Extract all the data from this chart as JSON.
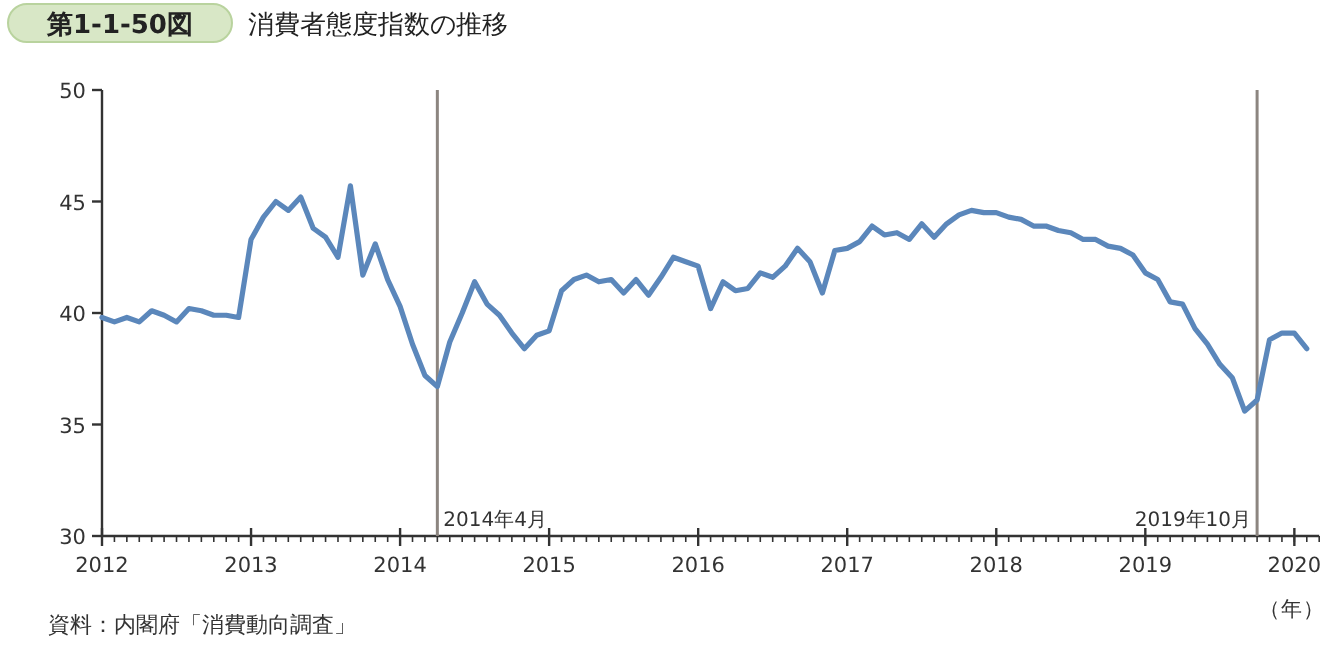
{
  "chart_data": {
    "type": "line",
    "title": "第1-1-50図",
    "subtitle": "消費者態度指数の推移",
    "xlabel": "（年）",
    "annotations": [
      "資料：内閣府「消費動向調査」"
    ],
    "x": [
      "2012-01",
      "2012-02",
      "2012-03",
      "2012-04",
      "2012-05",
      "2012-06",
      "2012-07",
      "2012-08",
      "2012-09",
      "2012-10",
      "2012-11",
      "2012-12",
      "2013-01",
      "2013-02",
      "2013-03",
      "2013-04",
      "2013-05",
      "2013-06",
      "2013-07",
      "2013-08",
      "2013-09",
      "2013-10",
      "2013-11",
      "2013-12",
      "2014-01",
      "2014-02",
      "2014-03",
      "2014-04",
      "2014-05",
      "2014-06",
      "2014-07",
      "2014-08",
      "2014-09",
      "2014-10",
      "2014-11",
      "2014-12",
      "2015-01",
      "2015-02",
      "2015-03",
      "2015-04",
      "2015-05",
      "2015-06",
      "2015-07",
      "2015-08",
      "2015-09",
      "2015-10",
      "2015-11",
      "2015-12",
      "2016-01",
      "2016-02",
      "2016-03",
      "2016-04",
      "2016-05",
      "2016-06",
      "2016-07",
      "2016-08",
      "2016-09",
      "2016-10",
      "2016-11",
      "2016-12",
      "2017-01",
      "2017-02",
      "2017-03",
      "2017-04",
      "2017-05",
      "2017-06",
      "2017-07",
      "2017-08",
      "2017-09",
      "2017-10",
      "2017-11",
      "2017-12",
      "2018-01",
      "2018-02",
      "2018-03",
      "2018-04",
      "2018-05",
      "2018-06",
      "2018-07",
      "2018-08",
      "2018-09",
      "2018-10",
      "2018-11",
      "2018-12",
      "2019-01",
      "2019-02",
      "2019-03",
      "2019-04",
      "2019-05",
      "2019-06",
      "2019-07",
      "2019-08",
      "2019-09",
      "2019-10",
      "2019-11",
      "2019-12",
      "2020-01",
      "2020-02"
    ],
    "series": [
      {
        "color": "#5b87bb",
        "values": [
          39.8,
          39.6,
          39.8,
          39.6,
          40.1,
          39.9,
          39.6,
          40.2,
          40.1,
          39.9,
          39.9,
          39.8,
          43.3,
          44.3,
          45.0,
          44.6,
          45.2,
          43.8,
          43.4,
          42.5,
          45.7,
          41.7,
          43.1,
          41.5,
          40.3,
          38.6,
          37.2,
          36.7,
          38.7,
          40.0,
          41.4,
          40.4,
          39.9,
          39.1,
          38.4,
          39.0,
          39.2,
          41.0,
          41.5,
          41.7,
          41.4,
          41.5,
          40.9,
          41.5,
          40.8,
          41.6,
          42.5,
          42.3,
          42.1,
          40.2,
          41.4,
          41.0,
          41.1,
          41.8,
          41.6,
          42.1,
          42.9,
          42.3,
          40.9,
          42.8,
          42.9,
          43.2,
          43.9,
          43.5,
          43.6,
          43.3,
          44.0,
          43.4,
          44.0,
          44.4,
          44.6,
          44.5,
          44.5,
          44.3,
          44.2,
          43.9,
          43.9,
          43.7,
          43.6,
          43.3,
          43.3,
          43.0,
          42.9,
          42.6,
          41.8,
          41.5,
          40.5,
          40.4,
          39.3,
          38.6,
          37.7,
          37.1,
          35.6,
          36.1,
          38.8,
          39.1,
          39.1,
          38.4
        ]
      }
    ],
    "xlim": [
      "2012-01",
      "2020-03"
    ],
    "xticks": [
      {
        "value": "2012",
        "label": "2012"
      },
      {
        "value": "2013",
        "label": "2013"
      },
      {
        "value": "2014",
        "label": "2014"
      },
      {
        "value": "2015",
        "label": "2015"
      },
      {
        "value": "2016",
        "label": "2016"
      },
      {
        "value": "2017",
        "label": "2017"
      },
      {
        "value": "2018",
        "label": "2018"
      },
      {
        "value": "2019",
        "label": "2019"
      },
      {
        "value": "2020",
        "label": "2020"
      }
    ],
    "ylim": [
      30,
      50
    ],
    "yticks": [
      30,
      35,
      40,
      45,
      50
    ],
    "ref_lines": [
      {
        "axis": "x",
        "value": "2014-04",
        "label": "2014年4月",
        "color": "#8c8580"
      },
      {
        "axis": "x",
        "value": "2019-10",
        "label": "2019年10月",
        "color": "#8c8580"
      }
    ]
  }
}
